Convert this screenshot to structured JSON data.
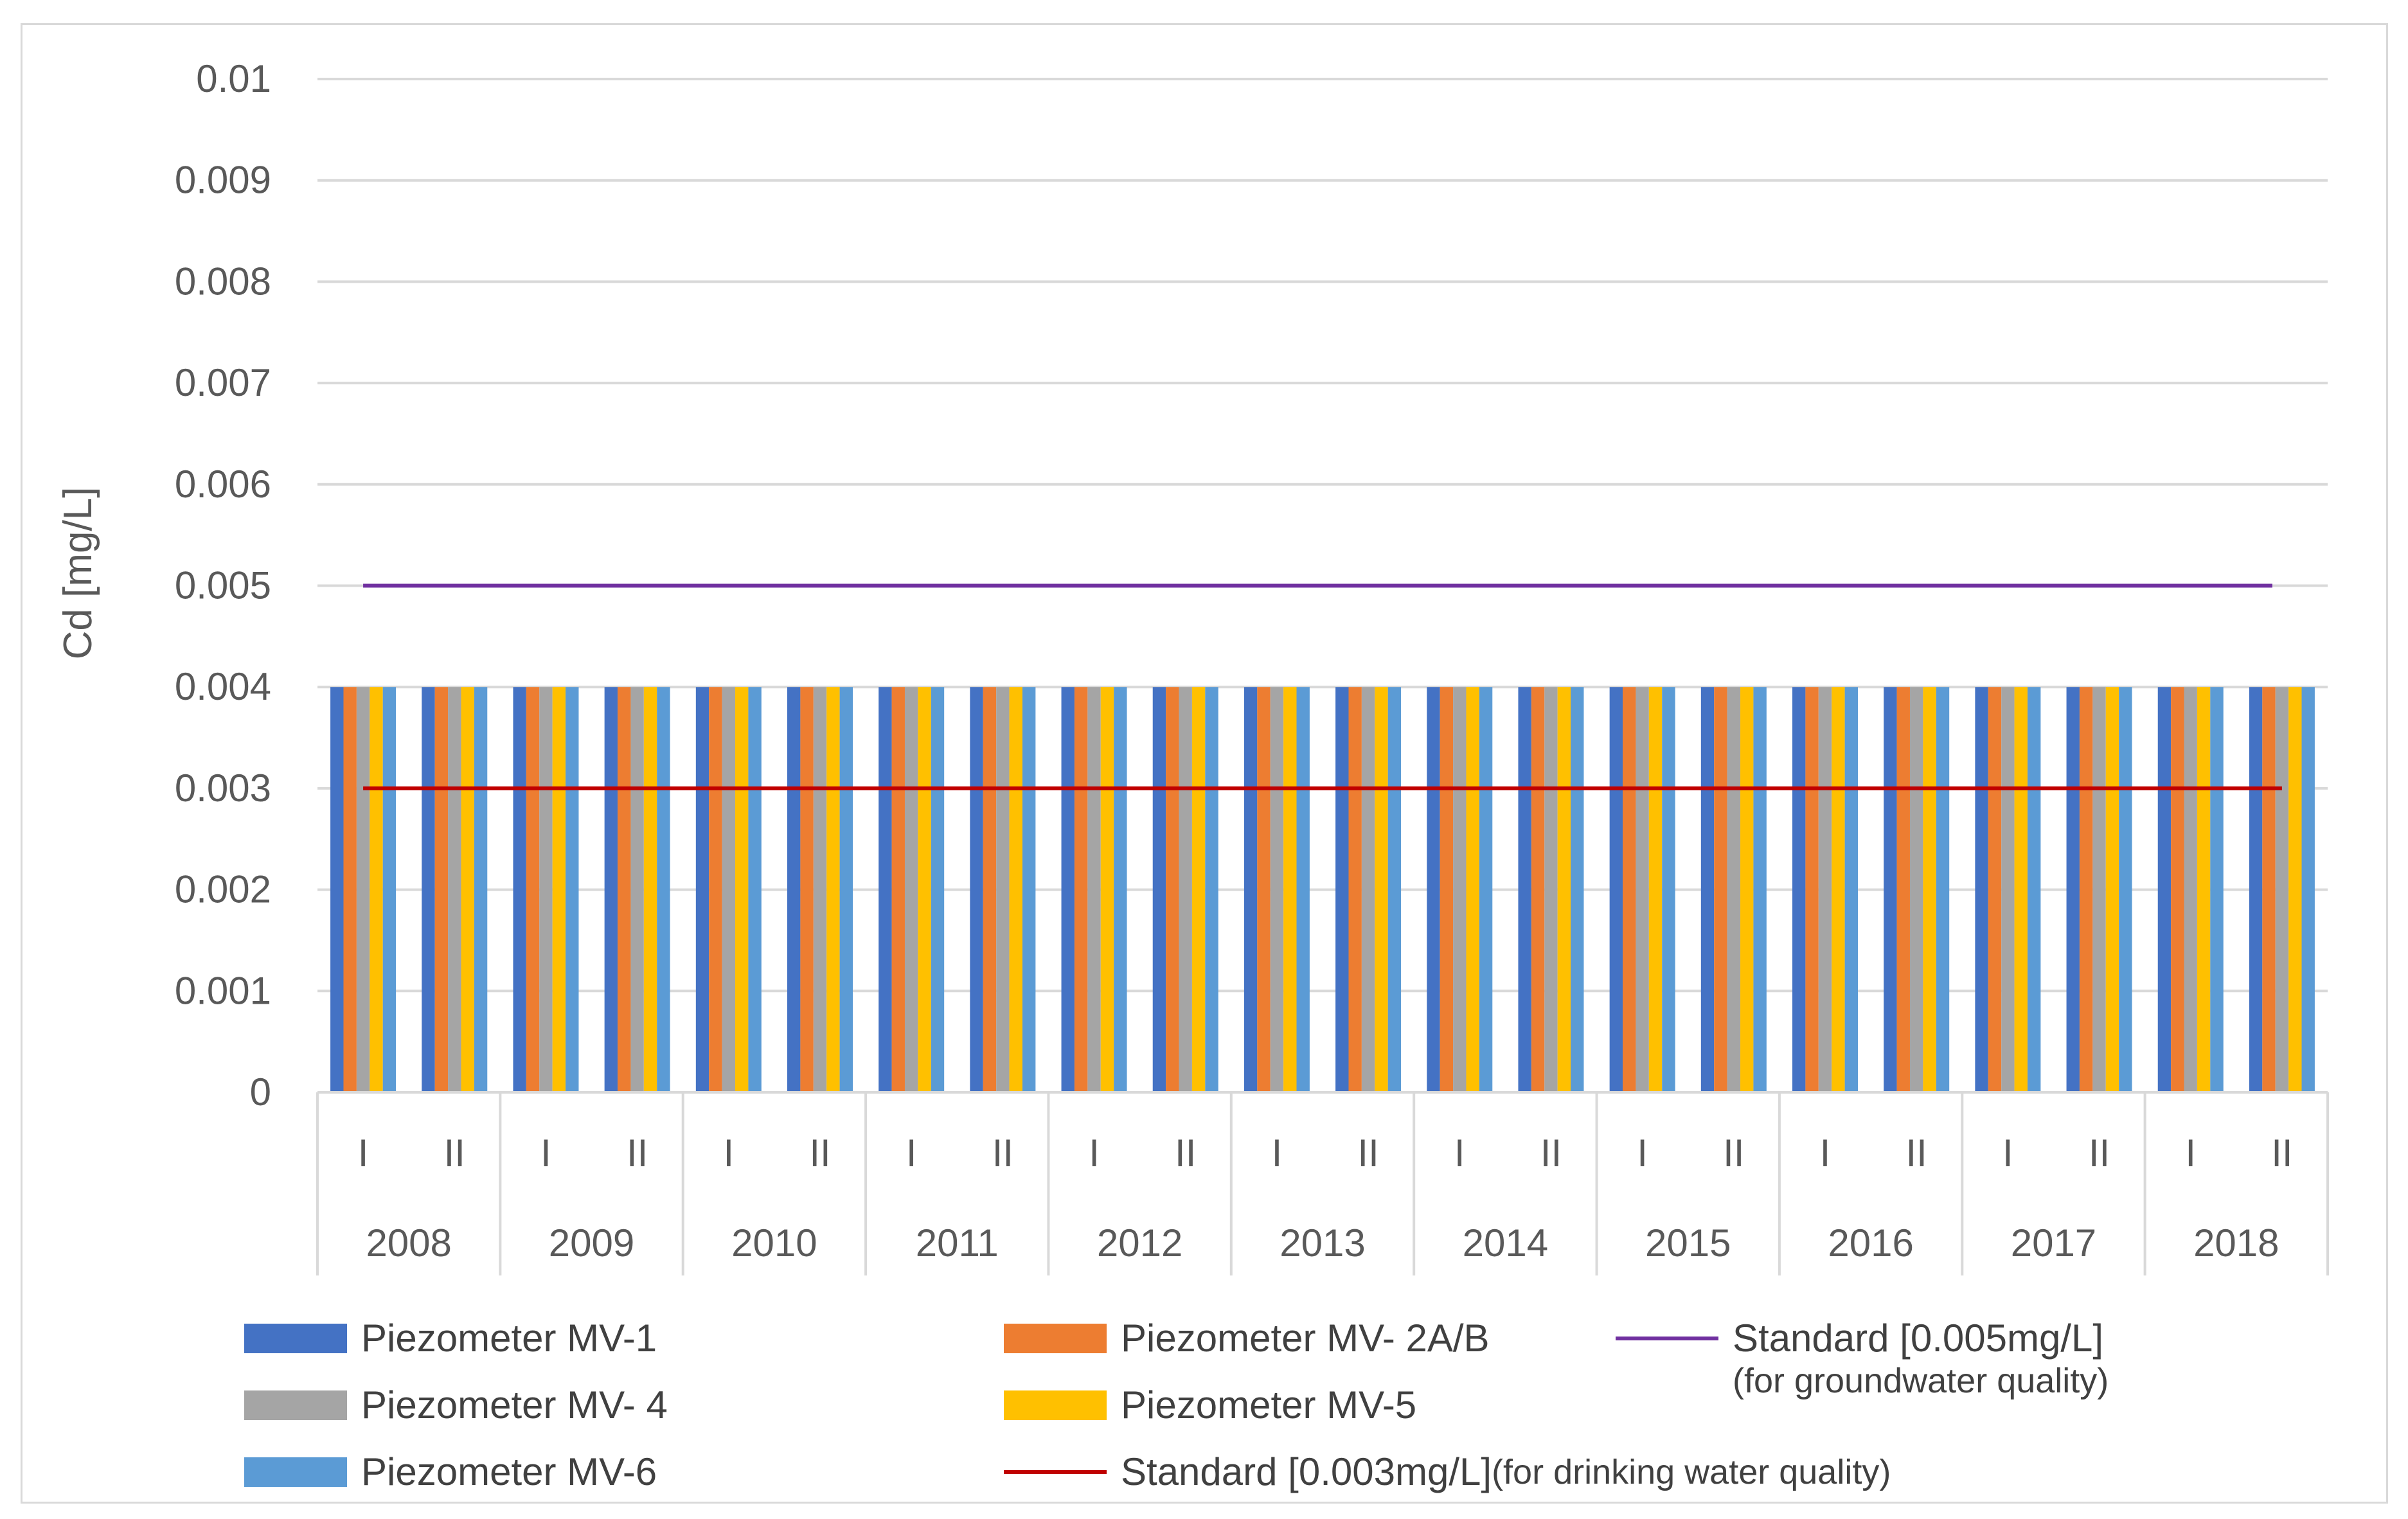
{
  "chart_data": {
    "type": "bar",
    "ylabel": "Cd [mg/L]",
    "ylim": [
      0,
      0.01
    ],
    "yticks": [
      "0",
      "0.001",
      "0.002",
      "0.003",
      "0.004",
      "0.005",
      "0.006",
      "0.007",
      "0.008",
      "0.009",
      "0.01"
    ],
    "grid": true,
    "legend_position": "bottom",
    "years": [
      "2008",
      "2009",
      "2010",
      "2011",
      "2012",
      "2013",
      "2014",
      "2015",
      "2016",
      "2017",
      "2018"
    ],
    "periods": [
      "I",
      "II"
    ],
    "series": [
      {
        "name": "Piezometer MV-1",
        "color": "#4472c4",
        "values": [
          0.004,
          0.004,
          0.004,
          0.004,
          0.004,
          0.004,
          0.004,
          0.004,
          0.004,
          0.004,
          0.004,
          0.004,
          0.004,
          0.004,
          0.004,
          0.004,
          0.004,
          0.004,
          0.004,
          0.004,
          0.004,
          0.004
        ]
      },
      {
        "name": "Piezometer MV- 2A/B",
        "color": "#ed7d31",
        "values": [
          0.004,
          0.004,
          0.004,
          0.004,
          0.004,
          0.004,
          0.004,
          0.004,
          0.004,
          0.004,
          0.004,
          0.004,
          0.004,
          0.004,
          0.004,
          0.004,
          0.004,
          0.004,
          0.004,
          0.004,
          0.004,
          0.004
        ]
      },
      {
        "name": "Piezometer MV- 4",
        "color": "#a5a5a5",
        "values": [
          0.004,
          0.004,
          0.004,
          0.004,
          0.004,
          0.004,
          0.004,
          0.004,
          0.004,
          0.004,
          0.004,
          0.004,
          0.004,
          0.004,
          0.004,
          0.004,
          0.004,
          0.004,
          0.004,
          0.004,
          0.004,
          0.004
        ]
      },
      {
        "name": "Piezometer MV-5",
        "color": "#ffc000",
        "values": [
          0.004,
          0.004,
          0.004,
          0.004,
          0.004,
          0.004,
          0.004,
          0.004,
          0.004,
          0.004,
          0.004,
          0.004,
          0.004,
          0.004,
          0.004,
          0.004,
          0.004,
          0.004,
          0.004,
          0.004,
          0.004,
          0.004
        ]
      },
      {
        "name": "Piezometer MV-6",
        "color": "#5b9bd5",
        "values": [
          0.004,
          0.004,
          0.004,
          0.004,
          0.004,
          0.004,
          0.004,
          0.004,
          0.004,
          0.004,
          0.004,
          0.004,
          0.004,
          0.004,
          0.004,
          0.004,
          0.004,
          0.004,
          0.004,
          0.004,
          0.004,
          0.004
        ]
      }
    ],
    "reference_lines": [
      {
        "name": "Standard [0.005mg/L]",
        "note": "(for groundwater quality)",
        "value": 0.005,
        "color": "#7030a0"
      },
      {
        "name": "Standard [0.003mg/L]",
        "note": "(for drinking water quality)",
        "value": 0.003,
        "color": "#c00000"
      }
    ]
  }
}
